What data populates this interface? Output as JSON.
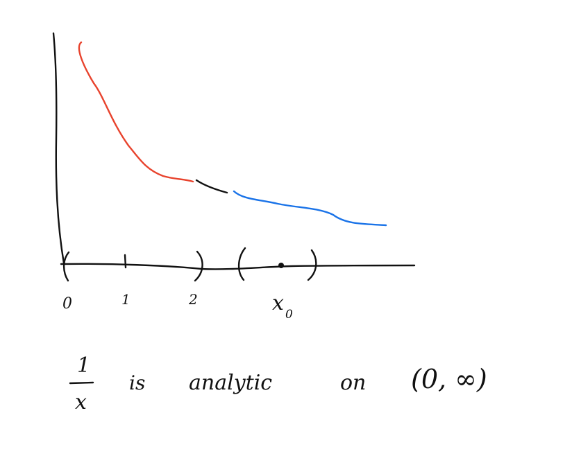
{
  "colors": {
    "ink": "#111111",
    "red_segment": "#e8432d",
    "blue_segment": "#1a73e8"
  },
  "axis": {
    "tick_labels": [
      "0",
      "1",
      "2"
    ],
    "point_label": "x",
    "point_subscript": "0"
  },
  "statement": {
    "fraction_numerator": "1",
    "fraction_denominator": "x",
    "verb": "is",
    "word_analytic": "analytic",
    "word_on": "on",
    "interval": "(0, ∞)"
  }
}
